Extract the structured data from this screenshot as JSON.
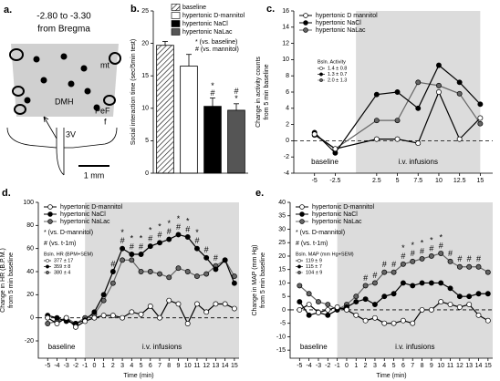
{
  "diagram": {
    "label": "a.",
    "coords": "-2.80 to -3.30",
    "ref": "from Bregma",
    "regions": [
      "mt",
      "DMH",
      "PeF",
      "f",
      "3V"
    ],
    "scale": "1 mm"
  },
  "chart_data": [
    {
      "type": "bar",
      "label": "b.",
      "ylabel": [
        "Social interaction time (sec/5min test)"
      ],
      "categories": [
        "baseline",
        "hypertonic D-mannitol",
        "hypertonic NaCl",
        "hypertonic NaLac"
      ],
      "values": [
        19.7,
        16.5,
        10.3,
        9.7
      ],
      "errors": [
        0.6,
        1.8,
        1.3,
        1.0
      ],
      "colors": [
        "#ffffff",
        "#ffffff",
        "#000000",
        "#555555"
      ],
      "hatch": [
        true,
        false,
        false,
        false
      ],
      "ylim": [
        0,
        25
      ],
      "yticks": [
        0,
        5,
        10,
        15,
        20,
        25
      ],
      "notes": [
        "* (vs. baseline)",
        "# (vs. mannitol)"
      ],
      "annotations": [
        {
          "index": 2,
          "lines": [
            "*",
            "#"
          ]
        },
        {
          "index": 3,
          "lines": [
            "#",
            "*"
          ]
        }
      ]
    },
    {
      "type": "line",
      "label": "c.",
      "ylabel": [
        "Change in activity counts",
        "from 5 min baseline"
      ],
      "x": [
        -5,
        -2.5,
        2.5,
        5,
        7.5,
        10,
        12.5,
        15
      ],
      "series": [
        {
          "name": "hypertonic D mannitol",
          "color": "#ffffff",
          "values": [
            0.8,
            -1.0,
            0.2,
            0.2,
            -0.3,
            6.0,
            0.2,
            2.8
          ]
        },
        {
          "name": "hypertonic NaCl",
          "color": "#000000",
          "values": [
            1.0,
            -1.5,
            5.7,
            6.0,
            4.0,
            9.3,
            7.2,
            4.5
          ]
        },
        {
          "name": "hypertonic NaLac",
          "color": "#666666",
          "values": [
            0.7,
            -1.0,
            2.5,
            2.5,
            7.2,
            6.8,
            5.8,
            2.1
          ]
        }
      ],
      "xlim": [
        -7.5,
        16.5
      ],
      "xticks": [
        -5,
        -2.5,
        2.5,
        5,
        7.5,
        10,
        12.5,
        15
      ],
      "ylim": [
        -4,
        16
      ],
      "yticks": [
        -4,
        -2,
        0,
        2,
        4,
        6,
        8,
        10,
        12,
        14,
        16
      ],
      "shade": [
        0,
        15
      ],
      "regions": [
        "baseline",
        "i.v. infusions"
      ],
      "inset_title": "Bsln. Activity",
      "inset": [
        "1.4 ± 0.8",
        "1.3 ± 0.7",
        "2.0 ± 1.3"
      ]
    },
    {
      "type": "line",
      "label": "d.",
      "ylabel": [
        "Change in HR (B.P.M.)",
        "from 5 min baseline"
      ],
      "xlabel": "Time (min)",
      "x": [
        -5,
        -4,
        -3,
        -2,
        -1,
        0,
        1,
        2,
        3,
        4,
        5,
        6,
        7,
        8,
        9,
        10,
        11,
        12,
        13,
        14,
        15
      ],
      "series": [
        {
          "name": "hypertonic D-mannitol",
          "color": "#ffffff",
          "values": [
            0,
            -5,
            0,
            -8,
            -3,
            0,
            2,
            2,
            0,
            5,
            3,
            10,
            0,
            15,
            12,
            -5,
            12,
            5,
            12,
            12,
            8
          ]
        },
        {
          "name": "hypertonic NaCl",
          "color": "#000000",
          "values": [
            2,
            0,
            -3,
            -5,
            -2,
            5,
            20,
            40,
            60,
            55,
            55,
            62,
            65,
            68,
            72,
            70,
            60,
            52,
            42,
            50,
            30
          ]
        },
        {
          "name": "hypertonic NaLac",
          "color": "#666666",
          "values": [
            -5,
            -3,
            0,
            -5,
            0,
            3,
            15,
            30,
            50,
            50,
            40,
            40,
            38,
            35,
            43,
            40,
            36,
            38,
            45,
            50,
            36
          ]
        }
      ],
      "xlim": [
        -6,
        15.5
      ],
      "xticks": [
        -5,
        -4,
        -3,
        -2,
        -1,
        0,
        1,
        2,
        3,
        4,
        5,
        6,
        7,
        8,
        9,
        10,
        11,
        12,
        13,
        14,
        15
      ],
      "ylim": [
        -35,
        100
      ],
      "yticks": [
        -20,
        0,
        20,
        40,
        60,
        80,
        100
      ],
      "shade": [
        -1,
        15.5
      ],
      "regions": [
        "baseline",
        "i.v. infusions"
      ],
      "notes": [
        "* (vs. D-mannitol)",
        "# (vs. t-1m)"
      ],
      "annotations": [
        {
          "text": "*",
          "x": [
            3,
            4,
            5,
            6,
            7,
            8,
            9,
            10,
            11
          ]
        },
        {
          "text": "#",
          "x": [
            2,
            3,
            4,
            5,
            6,
            7,
            8,
            9,
            10,
            11,
            12,
            13
          ]
        }
      ],
      "inset_title": "Bsln. HR (BPM+SEM)",
      "inset": [
        "377 ± 17",
        "359 ± 8",
        "380 ± 4"
      ]
    },
    {
      "type": "line",
      "label": "e.",
      "ylabel": [
        "Change in MAP (mm Hg)",
        "from 5 min baseline"
      ],
      "xlabel": "Time (min)",
      "x": [
        -5,
        -4,
        -3,
        -2,
        -1,
        0,
        1,
        2,
        3,
        4,
        5,
        6,
        7,
        8,
        9,
        10,
        11,
        12,
        13,
        14,
        15
      ],
      "series": [
        {
          "name": "hypertonic D-mannitol",
          "color": "#ffffff",
          "values": [
            0,
            2,
            -1,
            0,
            1,
            0,
            -2,
            -4,
            -3,
            -5,
            -5,
            -4,
            -5,
            0,
            0,
            3,
            2,
            1,
            2,
            -2,
            -4
          ]
        },
        {
          "name": "hypertonic NaCl",
          "color": "#000000",
          "values": [
            3,
            -2,
            -1,
            -2,
            0,
            1,
            3,
            4,
            2,
            5,
            6,
            10,
            9,
            10,
            10,
            10,
            8,
            5,
            5,
            6,
            6
          ]
        },
        {
          "name": "hypertonic NaLac",
          "color": "#666666",
          "values": [
            9,
            6,
            3,
            2,
            0,
            2,
            5,
            9,
            10,
            14,
            14,
            17,
            18,
            19,
            20,
            21,
            18,
            16,
            16,
            16,
            14
          ]
        }
      ],
      "xlim": [
        -6,
        15.5
      ],
      "xticks": [
        -5,
        -4,
        -3,
        -2,
        -1,
        0,
        1,
        2,
        3,
        4,
        5,
        6,
        7,
        8,
        9,
        10,
        11,
        12,
        13,
        14,
        15
      ],
      "ylim": [
        -18,
        40
      ],
      "yticks": [
        -15,
        -10,
        -5,
        0,
        5,
        10,
        15,
        20,
        25,
        30,
        35,
        40
      ],
      "shade": [
        -1,
        15.5
      ],
      "regions": [
        "baseline",
        "i.v. infusions"
      ],
      "notes": [
        "* (vs. D-mannitol)",
        "# (vs. t-1m)"
      ],
      "annotations": [
        {
          "text": "*",
          "x": [
            6,
            7,
            8,
            9,
            10
          ]
        },
        {
          "text": "#",
          "x": [
            2,
            3,
            4,
            5,
            6,
            7,
            8,
            9,
            10,
            11,
            12,
            13,
            14
          ]
        }
      ],
      "inset_title": "Bsln. MAP (mm Hg+SEM)",
      "inset": [
        "119 ± 9",
        "115 ± 7",
        "104 ± 9"
      ]
    }
  ]
}
